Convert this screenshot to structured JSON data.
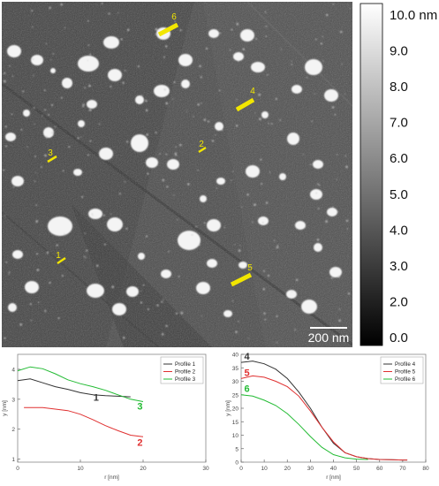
{
  "afm_image": {
    "scale_bar_label": "200 nm",
    "colorbar": {
      "ticks": [
        "10.0 nm",
        "9.0",
        "8.0",
        "7.0",
        "6.0",
        "5.0",
        "4.0",
        "3.0",
        "2.0",
        "0.0"
      ]
    },
    "profile_markers": [
      "1",
      "2",
      "3",
      "4",
      "5",
      "6"
    ],
    "marker_color": "#f2e600"
  },
  "chart_data": [
    {
      "type": "line",
      "xlabel": "r [nm]",
      "ylabel": "y [nm]",
      "xlim": [
        0,
        30
      ],
      "ylim": [
        0.9,
        4.5
      ],
      "xticks": [
        "0",
        "10",
        "20",
        "30"
      ],
      "yticks": [
        "1",
        "2",
        "3",
        "4"
      ],
      "legend_position": "top-right",
      "series": [
        {
          "name": "Profile 1",
          "label": "1",
          "color": "#333333",
          "x": [
            0,
            2,
            4,
            6,
            8,
            10,
            12,
            14,
            16,
            18
          ],
          "y": [
            3.62,
            3.68,
            3.55,
            3.42,
            3.33,
            3.22,
            3.15,
            3.12,
            3.1,
            3.08
          ]
        },
        {
          "name": "Profile 2",
          "label": "2",
          "color": "#e03030",
          "x": [
            1,
            4,
            8,
            10,
            12,
            14,
            16,
            18,
            20
          ],
          "y": [
            2.72,
            2.72,
            2.62,
            2.5,
            2.32,
            2.12,
            1.95,
            1.8,
            1.75
          ]
        },
        {
          "name": "Profile 3",
          "label": "3",
          "color": "#22bb33",
          "x": [
            0,
            2,
            4,
            6,
            8,
            10,
            12,
            14,
            16,
            18,
            20
          ],
          "y": [
            3.95,
            4.08,
            4.02,
            3.85,
            3.65,
            3.52,
            3.42,
            3.3,
            3.15,
            3.0,
            2.92
          ]
        }
      ]
    },
    {
      "type": "line",
      "xlabel": "r [nm]",
      "ylabel": "y [nm]",
      "xlim": [
        0,
        80
      ],
      "ylim": [
        0,
        40
      ],
      "xticks": [
        "0",
        "10",
        "20",
        "30",
        "40",
        "50",
        "60",
        "70",
        "80"
      ],
      "yticks": [
        "0",
        "5",
        "10",
        "15",
        "20",
        "25",
        "30",
        "35",
        "40"
      ],
      "legend_position": "top-right",
      "series": [
        {
          "name": "Profile 4",
          "label": "4",
          "color": "#333333",
          "x": [
            0,
            5,
            10,
            15,
            20,
            25,
            30,
            35,
            40,
            45,
            50,
            55,
            60,
            65,
            70,
            72
          ],
          "y": [
            37,
            37.5,
            36.5,
            34.5,
            31,
            26,
            20,
            13,
            7,
            3.5,
            2,
            1.3,
            1,
            0.9,
            0.8,
            0.8
          ]
        },
        {
          "name": "Profile 5",
          "label": "5",
          "color": "#e03030",
          "x": [
            0,
            5,
            10,
            15,
            20,
            25,
            30,
            35,
            40,
            45,
            50,
            55,
            60,
            65,
            70,
            72
          ],
          "y": [
            31,
            32,
            31.5,
            30,
            28,
            24.5,
            19,
            13,
            7.5,
            3.5,
            2,
            1.3,
            1,
            0.9,
            0.8,
            0.8
          ]
        },
        {
          "name": "Profile 6",
          "label": "6",
          "color": "#22bb33",
          "x": [
            0,
            5,
            10,
            15,
            20,
            25,
            30,
            35,
            40,
            45,
            50,
            55
          ],
          "y": [
            25,
            24.5,
            23,
            21,
            18,
            14,
            9.5,
            5.5,
            2.8,
            1.6,
            1.1,
            1.0
          ]
        }
      ]
    }
  ]
}
